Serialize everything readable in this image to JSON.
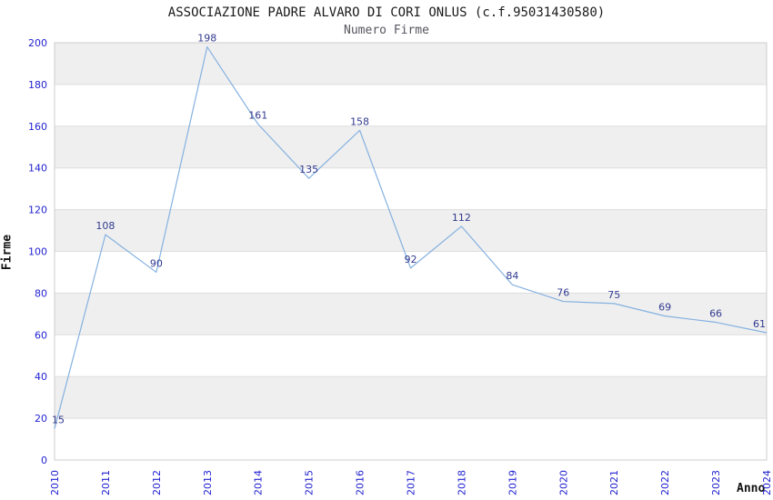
{
  "page": {
    "title": "ASSOCIAZIONE PADRE ALVARO DI CORI ONLUS (c.f.95031430580)",
    "subtitle": "Numero Firme"
  },
  "chart_data": {
    "type": "line",
    "title": "ASSOCIAZIONE PADRE ALVARO DI CORI ONLUS (c.f.95031430580)",
    "subtitle": "Numero Firme",
    "xlabel": "Anno",
    "ylabel": "Firme",
    "categories": [
      "2010",
      "2011",
      "2012",
      "2013",
      "2014",
      "2015",
      "2016",
      "2017",
      "2018",
      "2019",
      "2020",
      "2021",
      "2022",
      "2023",
      "2024"
    ],
    "values": [
      15,
      108,
      90,
      198,
      161,
      135,
      158,
      92,
      112,
      84,
      76,
      75,
      69,
      66,
      61
    ],
    "ylim": [
      0,
      200
    ],
    "ytick_step": 20,
    "grid": true,
    "legend_position": "none",
    "band_pattern": "alternating-horizontal",
    "colors": {
      "line": "#85b1e0",
      "tick_label": "#2323d1",
      "data_label": "#333a8f",
      "band": "#efefef",
      "gridline": "#dddddd",
      "plot_border": "#cccccc",
      "plot_background": "#ffffff",
      "title": "#1a1a1a",
      "subtitle": "#55555e",
      "axis_label": "#111111"
    }
  }
}
